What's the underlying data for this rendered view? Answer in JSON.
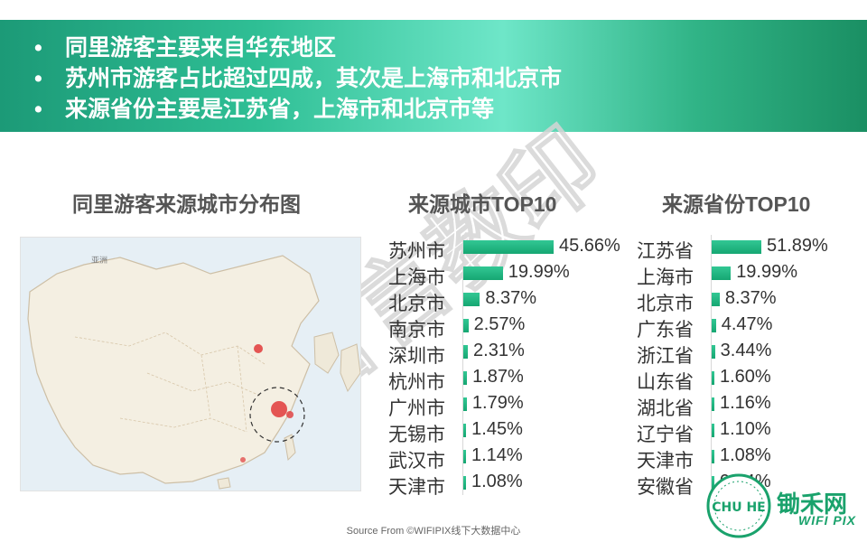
{
  "banner": {
    "bullet": "•",
    "lines": [
      "同里游客主要来自华东地区",
      "苏州市游客占比超过四成，其次是上海市和北京市",
      "来源省份主要是江苏省，上海市和北京市等"
    ]
  },
  "map_section": {
    "title": "同里游客来源城市分布图",
    "labels": {
      "asia": "亚洲"
    }
  },
  "watermark": "昔言教印",
  "colors": {
    "banner": "#2fbf95",
    "bar": "#1fb07d",
    "hotspot": "#e03a3a"
  },
  "chart_data": [
    {
      "type": "bar",
      "orientation": "horizontal",
      "title": "来源城市TOP10",
      "categories": [
        "苏州市",
        "上海市",
        "北京市",
        "南京市",
        "深圳市",
        "杭州市",
        "广州市",
        "无锡市",
        "武汉市",
        "天津市"
      ],
      "values": [
        45.66,
        19.99,
        8.37,
        2.57,
        2.31,
        1.87,
        1.79,
        1.45,
        1.14,
        1.08
      ],
      "labels": [
        "45.66%",
        "19.99%",
        "8.37%",
        "2.57%",
        "2.31%",
        "1.87%",
        "1.79%",
        "1.45%",
        "1.14%",
        "1.08%"
      ],
      "unit": "%"
    },
    {
      "type": "bar",
      "orientation": "horizontal",
      "title": "来源省份TOP10",
      "categories": [
        "江苏省",
        "上海市",
        "北京市",
        "广东省",
        "浙江省",
        "山东省",
        "湖北省",
        "辽宁省",
        "天津市",
        "安徽省"
      ],
      "values": [
        51.89,
        19.99,
        8.37,
        4.47,
        3.44,
        1.6,
        1.16,
        1.1,
        1.08,
        0.94
      ],
      "labels": [
        "51.89%",
        "19.99%",
        "8.37%",
        "4.47%",
        "3.44%",
        "1.60%",
        "1.16%",
        "1.10%",
        "1.08%",
        "0.94%"
      ],
      "unit": "%"
    }
  ],
  "footer": {
    "source": "Source From ©WIFIPIX线下大数据中心"
  },
  "logo": {
    "name": "锄禾网",
    "sub": "WIFI PIX",
    "badge": "CHU HE"
  }
}
